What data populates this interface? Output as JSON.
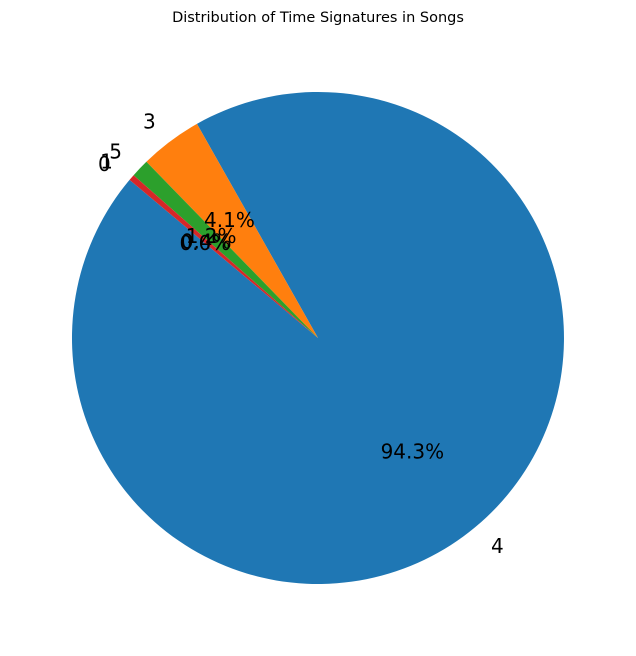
{
  "chart_data": {
    "type": "pie",
    "title": "Distribution of Time Signatures in Songs",
    "start_angle_deg": 140,
    "direction": "counterclockwise",
    "slices": [
      {
        "label": "4",
        "value": 94.3,
        "pct_label": "94.3%",
        "color": "#1f77b4"
      },
      {
        "label": "3",
        "value": 4.1,
        "pct_label": "4.1%",
        "color": "#ff7f0e"
      },
      {
        "label": "5",
        "value": 1.2,
        "pct_label": "1.2%",
        "color": "#2ca02c"
      },
      {
        "label": "1",
        "value": 0.4,
        "pct_label": "0.4%",
        "color": "#d62728"
      },
      {
        "label": "0",
        "value": 0.0,
        "pct_label": "0.0%",
        "color": "#9467bd"
      }
    ]
  }
}
